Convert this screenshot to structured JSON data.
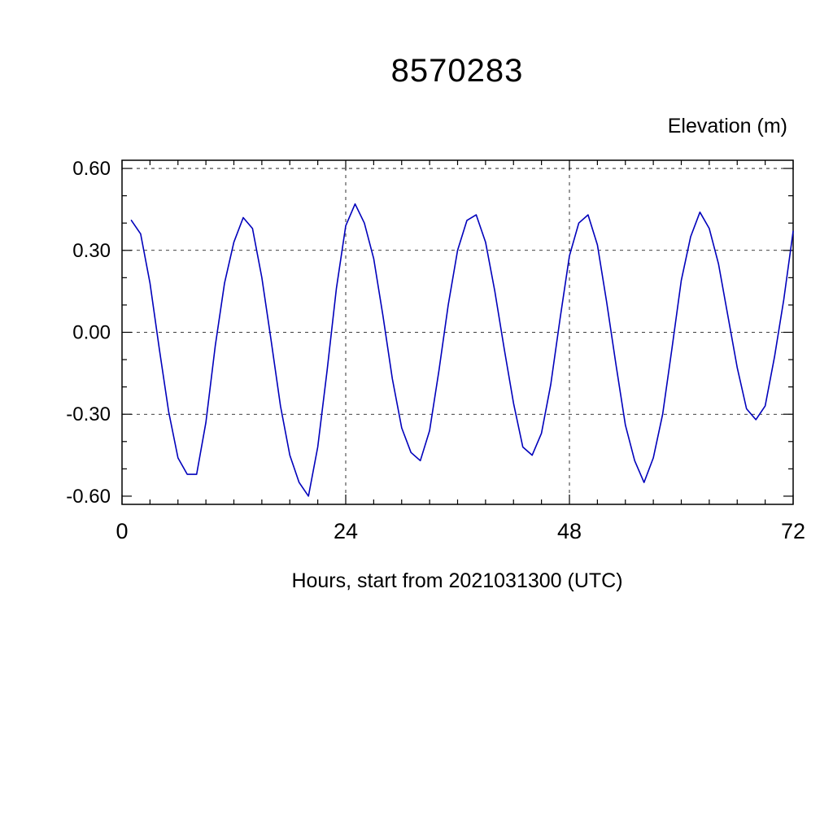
{
  "chart_data": {
    "type": "line",
    "title": "8570283",
    "ylabel": "Elevation (m)",
    "xlabel": "Hours, start from 2021031300 (UTC)",
    "xlim": [
      0,
      72
    ],
    "ylim": [
      -0.63,
      0.63
    ],
    "x_major_ticks": [
      0,
      24,
      48,
      72
    ],
    "x_tick_labels": [
      "0",
      "24",
      "48",
      "72"
    ],
    "x_minor_step": 3,
    "y_major_ticks": [
      0.6,
      0.3,
      0.0,
      -0.3,
      -0.6
    ],
    "y_tick_labels": [
      "0.60",
      "0.30",
      "0.00",
      "-0.30",
      "-0.60"
    ],
    "y_minor_step": 0.1,
    "grid_x": [
      24,
      48
    ],
    "grid_y": [
      0.6,
      0.3,
      0.0,
      -0.3
    ],
    "grid_on": true,
    "legend": "none",
    "line_color": "#0000bb",
    "x": [
      1,
      2,
      3,
      4,
      5,
      6,
      7,
      8,
      9,
      10,
      11,
      12,
      13,
      14,
      15,
      16,
      17,
      18,
      19,
      20,
      21,
      22,
      23,
      24,
      25,
      26,
      27,
      28,
      29,
      30,
      31,
      32,
      33,
      34,
      35,
      36,
      37,
      38,
      39,
      40,
      41,
      42,
      43,
      44,
      45,
      46,
      47,
      48,
      49,
      50,
      51,
      52,
      53,
      54,
      55,
      56,
      57,
      58,
      59,
      60,
      61,
      62,
      63,
      64,
      65,
      66,
      67,
      68,
      69,
      70,
      71,
      72
    ],
    "y": [
      0.41,
      0.36,
      0.18,
      -0.06,
      -0.29,
      -0.46,
      -0.52,
      -0.52,
      -0.33,
      -0.05,
      0.18,
      0.33,
      0.42,
      0.38,
      0.2,
      -0.03,
      -0.27,
      -0.45,
      -0.55,
      -0.6,
      -0.42,
      -0.14,
      0.16,
      0.39,
      0.47,
      0.4,
      0.27,
      0.06,
      -0.17,
      -0.35,
      -0.44,
      -0.47,
      -0.36,
      -0.14,
      0.1,
      0.3,
      0.41,
      0.43,
      0.33,
      0.15,
      -0.06,
      -0.26,
      -0.42,
      -0.45,
      -0.37,
      -0.19,
      0.05,
      0.28,
      0.4,
      0.43,
      0.32,
      0.11,
      -0.12,
      -0.34,
      -0.47,
      -0.55,
      -0.46,
      -0.3,
      -0.06,
      0.19,
      0.35,
      0.44,
      0.38,
      0.25,
      0.06,
      -0.13,
      -0.28,
      -0.32,
      -0.27,
      -0.09,
      0.12,
      0.37
    ]
  }
}
